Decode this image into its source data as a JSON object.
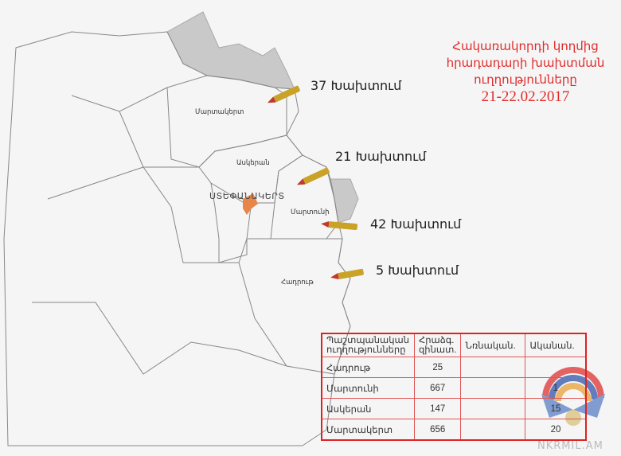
{
  "title": {
    "lines": [
      "Հակառակորդի կողմից",
      "հրադադարի խախտման",
      "ուղղությունները"
    ],
    "date": "21-22.02.2017"
  },
  "colors": {
    "title": "#e02b2b",
    "capital": "#e8864a",
    "occupied": "#c9c9c9",
    "table_border": "#d22222"
  },
  "regions": {
    "martakert": "Մարտակերտ",
    "askeran": "Ասկերան",
    "stepanakert": "ՍՏԵՓԱՆԱԿԵՐՏ",
    "martuni": "Մարտունի",
    "hadrut": "Հադրութ"
  },
  "violations": [
    {
      "count_label": "37 Խախտում",
      "icon": "bullet-icon"
    },
    {
      "count_label": "21 Խախտում",
      "icon": "bullet-icon"
    },
    {
      "count_label": "42 Խախտում",
      "icon": "bullet-icon"
    },
    {
      "count_label": "5 Խախտում",
      "icon": "bullet-icon"
    }
  ],
  "table": {
    "headers": [
      "Պաշտպանական ուղղությունները",
      "Հրաձգ. զինատ.",
      "Նռնական.",
      "Ականան."
    ],
    "rows": [
      [
        "Հադրութ",
        "25",
        "",
        ""
      ],
      [
        "Մարտունի",
        "667",
        "",
        "1"
      ],
      [
        "Ասկերան",
        "147",
        "",
        "15"
      ],
      [
        "Մարտակերտ",
        "656",
        "",
        "20"
      ]
    ]
  },
  "watermark": "NKRMIL.AM"
}
